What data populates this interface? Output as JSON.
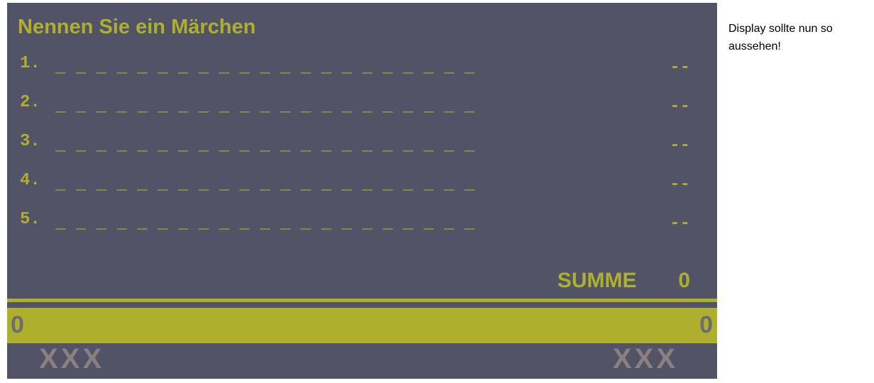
{
  "colors": {
    "panel": "#525366",
    "accent": "#adaf2d",
    "muted": "#6b6c74",
    "strike": "#8b7f80"
  },
  "board": {
    "title": "Nennen Sie ein Märchen",
    "answers": [
      {
        "number": "1.",
        "text": "_ _ _ _ _ _ _ _ _ _ _ _ _ _ _ _ _ _ _ _ _",
        "points": "--"
      },
      {
        "number": "2.",
        "text": "_ _ _ _ _ _ _ _ _ _ _ _ _ _ _ _ _ _ _ _ _",
        "points": "--"
      },
      {
        "number": "3.",
        "text": "_ _ _ _ _ _ _ _ _ _ _ _ _ _ _ _ _ _ _ _ _",
        "points": "--"
      },
      {
        "number": "4.",
        "text": "_ _ _ _ _ _ _ _ _ _ _ _ _ _ _ _ _ _ _ _ _",
        "points": "--"
      },
      {
        "number": "5.",
        "text": "_ _ _ _ _ _ _ _ _ _ _ _ _ _ _ _ _ _ _ _ _",
        "points": "--"
      }
    ],
    "sum_label": "SUMME",
    "sum_value": "0"
  },
  "scores": {
    "team_left": "0",
    "team_right": "0"
  },
  "strikes": {
    "left": "XXX",
    "right": "XXX"
  },
  "note": "Display sollte nun so aussehen!"
}
